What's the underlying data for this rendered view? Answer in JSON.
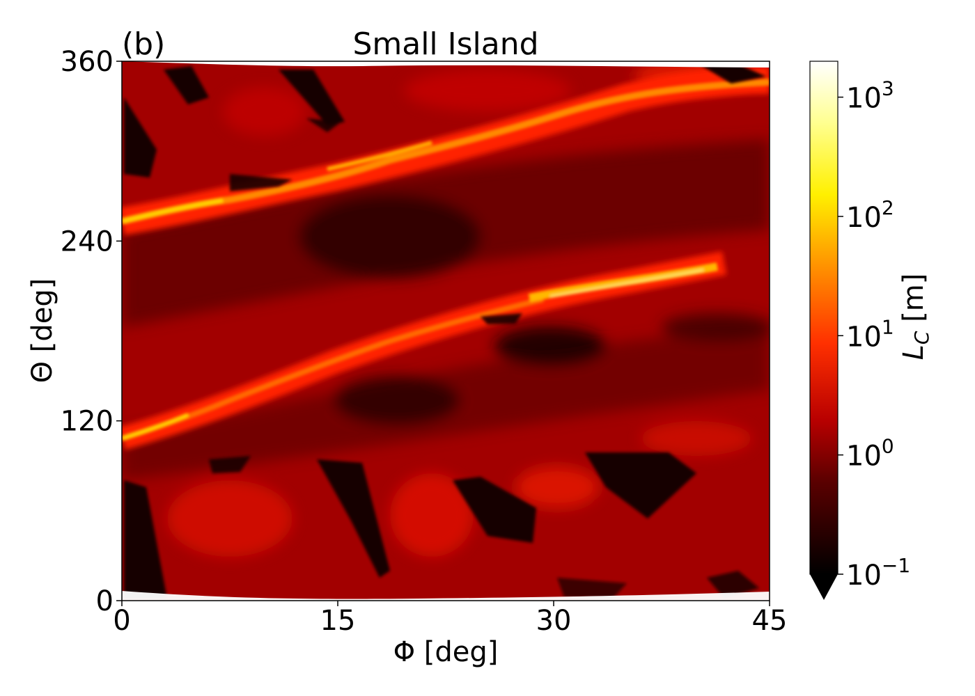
{
  "chart_data": {
    "type": "heatmap",
    "panel_label": "(b)",
    "title": "Small Island",
    "xlabel": "Φ [deg]",
    "ylabel": "Θ [deg]",
    "xlim": [
      0,
      45
    ],
    "ylim": [
      0,
      360
    ],
    "xticks": [
      0,
      15,
      30,
      45
    ],
    "yticks": [
      0,
      120,
      240,
      360
    ],
    "colorbar": {
      "label": "L_C [m]",
      "scale": "log",
      "range": [
        0.1,
        2000
      ],
      "ticks": [
        0.1,
        1,
        10,
        100,
        1000
      ],
      "tick_labels": [
        {
          "base": "10",
          "exp": "−1"
        },
        {
          "base": "10",
          "exp": "0"
        },
        {
          "base": "10",
          "exp": "1"
        },
        {
          "base": "10",
          "exp": "2"
        },
        {
          "base": "10",
          "exp": "3"
        }
      ],
      "colormap": "hot",
      "extend": "min"
    },
    "features": [
      {
        "name": "upper-ridge",
        "points": [
          [
            0,
            255
          ],
          [
            4,
            262
          ],
          [
            8,
            272
          ],
          [
            14,
            282
          ],
          [
            20,
            296
          ],
          [
            27,
            310
          ],
          [
            33,
            323
          ],
          [
            40,
            333
          ],
          [
            45,
            335
          ]
        ],
        "peak_value": 300
      },
      {
        "name": "lower-ridge",
        "points": [
          [
            0,
            108
          ],
          [
            4,
            122
          ],
          [
            8,
            138
          ],
          [
            14,
            158
          ],
          [
            20,
            178
          ],
          [
            26,
            196
          ],
          [
            32,
            208
          ],
          [
            38,
            218
          ],
          [
            41,
            225
          ]
        ],
        "peak_value": 300
      },
      {
        "name": "dark-basin-upper",
        "center": [
          20,
          245
        ],
        "value": 0.3
      },
      {
        "name": "dark-basin-mid",
        "center": [
          21,
          135
        ],
        "value": 0.3
      },
      {
        "name": "dark-patch-right",
        "center": [
          30,
          170
        ],
        "value": 0.15
      }
    ]
  }
}
